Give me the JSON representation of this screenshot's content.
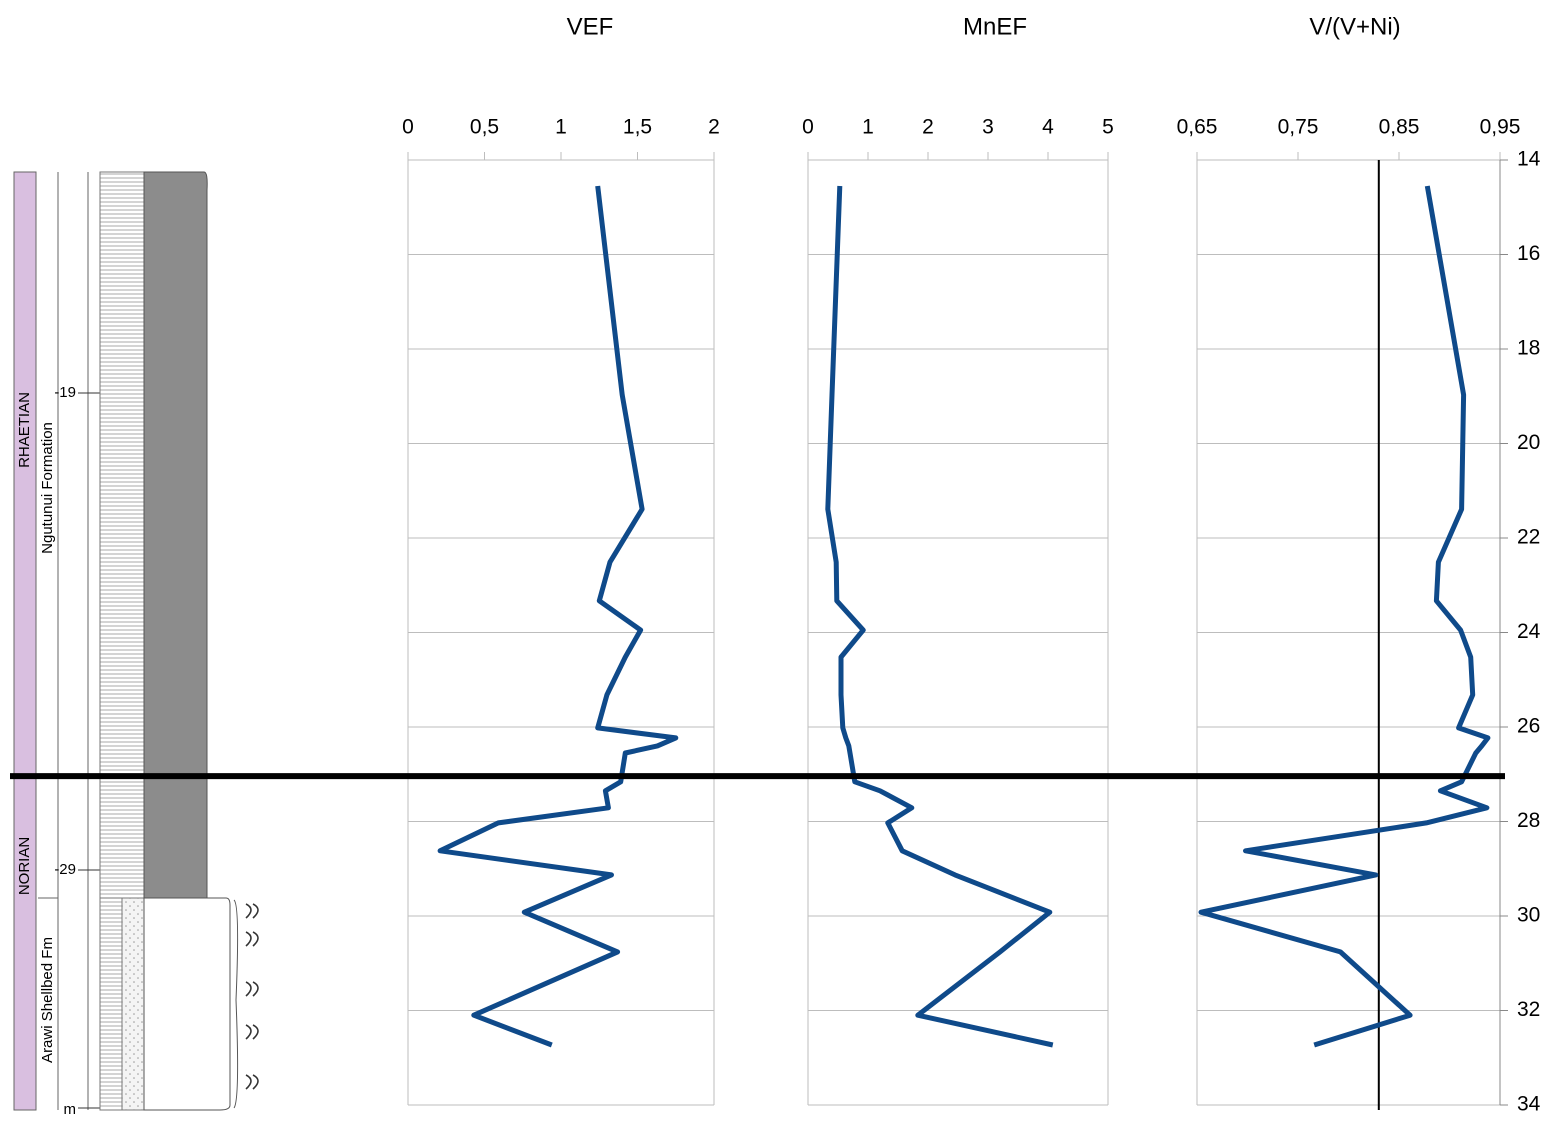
{
  "chart_data": {
    "type": "line",
    "y": [
      14.55,
      18.97,
      21.39,
      22.51,
      23.33,
      23.95,
      24.52,
      25.32,
      26.02,
      26.23,
      26.4,
      26.55,
      27.16,
      27.35,
      27.71,
      28.03,
      28.62,
      29.13,
      29.92,
      30.76,
      32.1,
      32.73
    ],
    "ylim": [
      14,
      34
    ],
    "y_inverted": true,
    "yticks": [
      14,
      16,
      18,
      20,
      22,
      24,
      26,
      28,
      30,
      32,
      34
    ],
    "grid": true,
    "boundary_depth": 27.04,
    "panels": [
      {
        "title": "VEF",
        "color": "#0f4a8a",
        "values": [
          1.24,
          1.4,
          1.53,
          1.32,
          1.25,
          1.52,
          1.42,
          1.3,
          1.24,
          1.75,
          1.63,
          1.42,
          1.39,
          1.29,
          1.31,
          0.59,
          0.21,
          1.33,
          0.76,
          1.37,
          0.43,
          0.94
        ],
        "xlim": [
          0,
          2
        ],
        "xticks": [
          0,
          {
            "value": 0.5,
            "label": "0,5"
          },
          1,
          {
            "value": 1.5,
            "label": "1,5"
          },
          2
        ]
      },
      {
        "title": "MnEF",
        "color": "#0f4a8a",
        "values": [
          0.53,
          0.4,
          0.33,
          0.47,
          0.48,
          0.92,
          0.55,
          0.55,
          0.58,
          0.63,
          0.68,
          0.7,
          0.78,
          1.2,
          1.73,
          1.33,
          1.57,
          2.45,
          4.03,
          3.2,
          1.83,
          4.08
        ],
        "xlim": [
          0,
          5
        ],
        "xticks": [
          0,
          1,
          2,
          3,
          4,
          5
        ]
      },
      {
        "title": "V/(V+Ni)",
        "color": "#0f4a8a",
        "values": [
          0.878,
          0.914,
          0.912,
          0.889,
          0.887,
          0.911,
          0.921,
          0.923,
          0.909,
          0.938,
          0.932,
          0.926,
          0.912,
          0.891,
          0.937,
          0.877,
          0.698,
          0.827,
          0.654,
          0.792,
          0.861,
          0.766
        ],
        "xlim": [
          0.65,
          0.95
        ],
        "xticks": [
          {
            "value": 0.65,
            "label": "0,65"
          },
          {
            "value": 0.75,
            "label": "0,75"
          },
          {
            "value": 0.85,
            "label": "0,85"
          },
          {
            "value": 0.95,
            "label": "0,95"
          }
        ],
        "threshold": 0.83
      }
    ],
    "column": {
      "stages": [
        "RHAETIAN",
        "NORIAN"
      ],
      "formations": [
        "Ngutunui Formation",
        "Arawi Shellbed Fm"
      ],
      "depth_labels": [
        "-19",
        "-29"
      ],
      "unit": "m"
    }
  }
}
